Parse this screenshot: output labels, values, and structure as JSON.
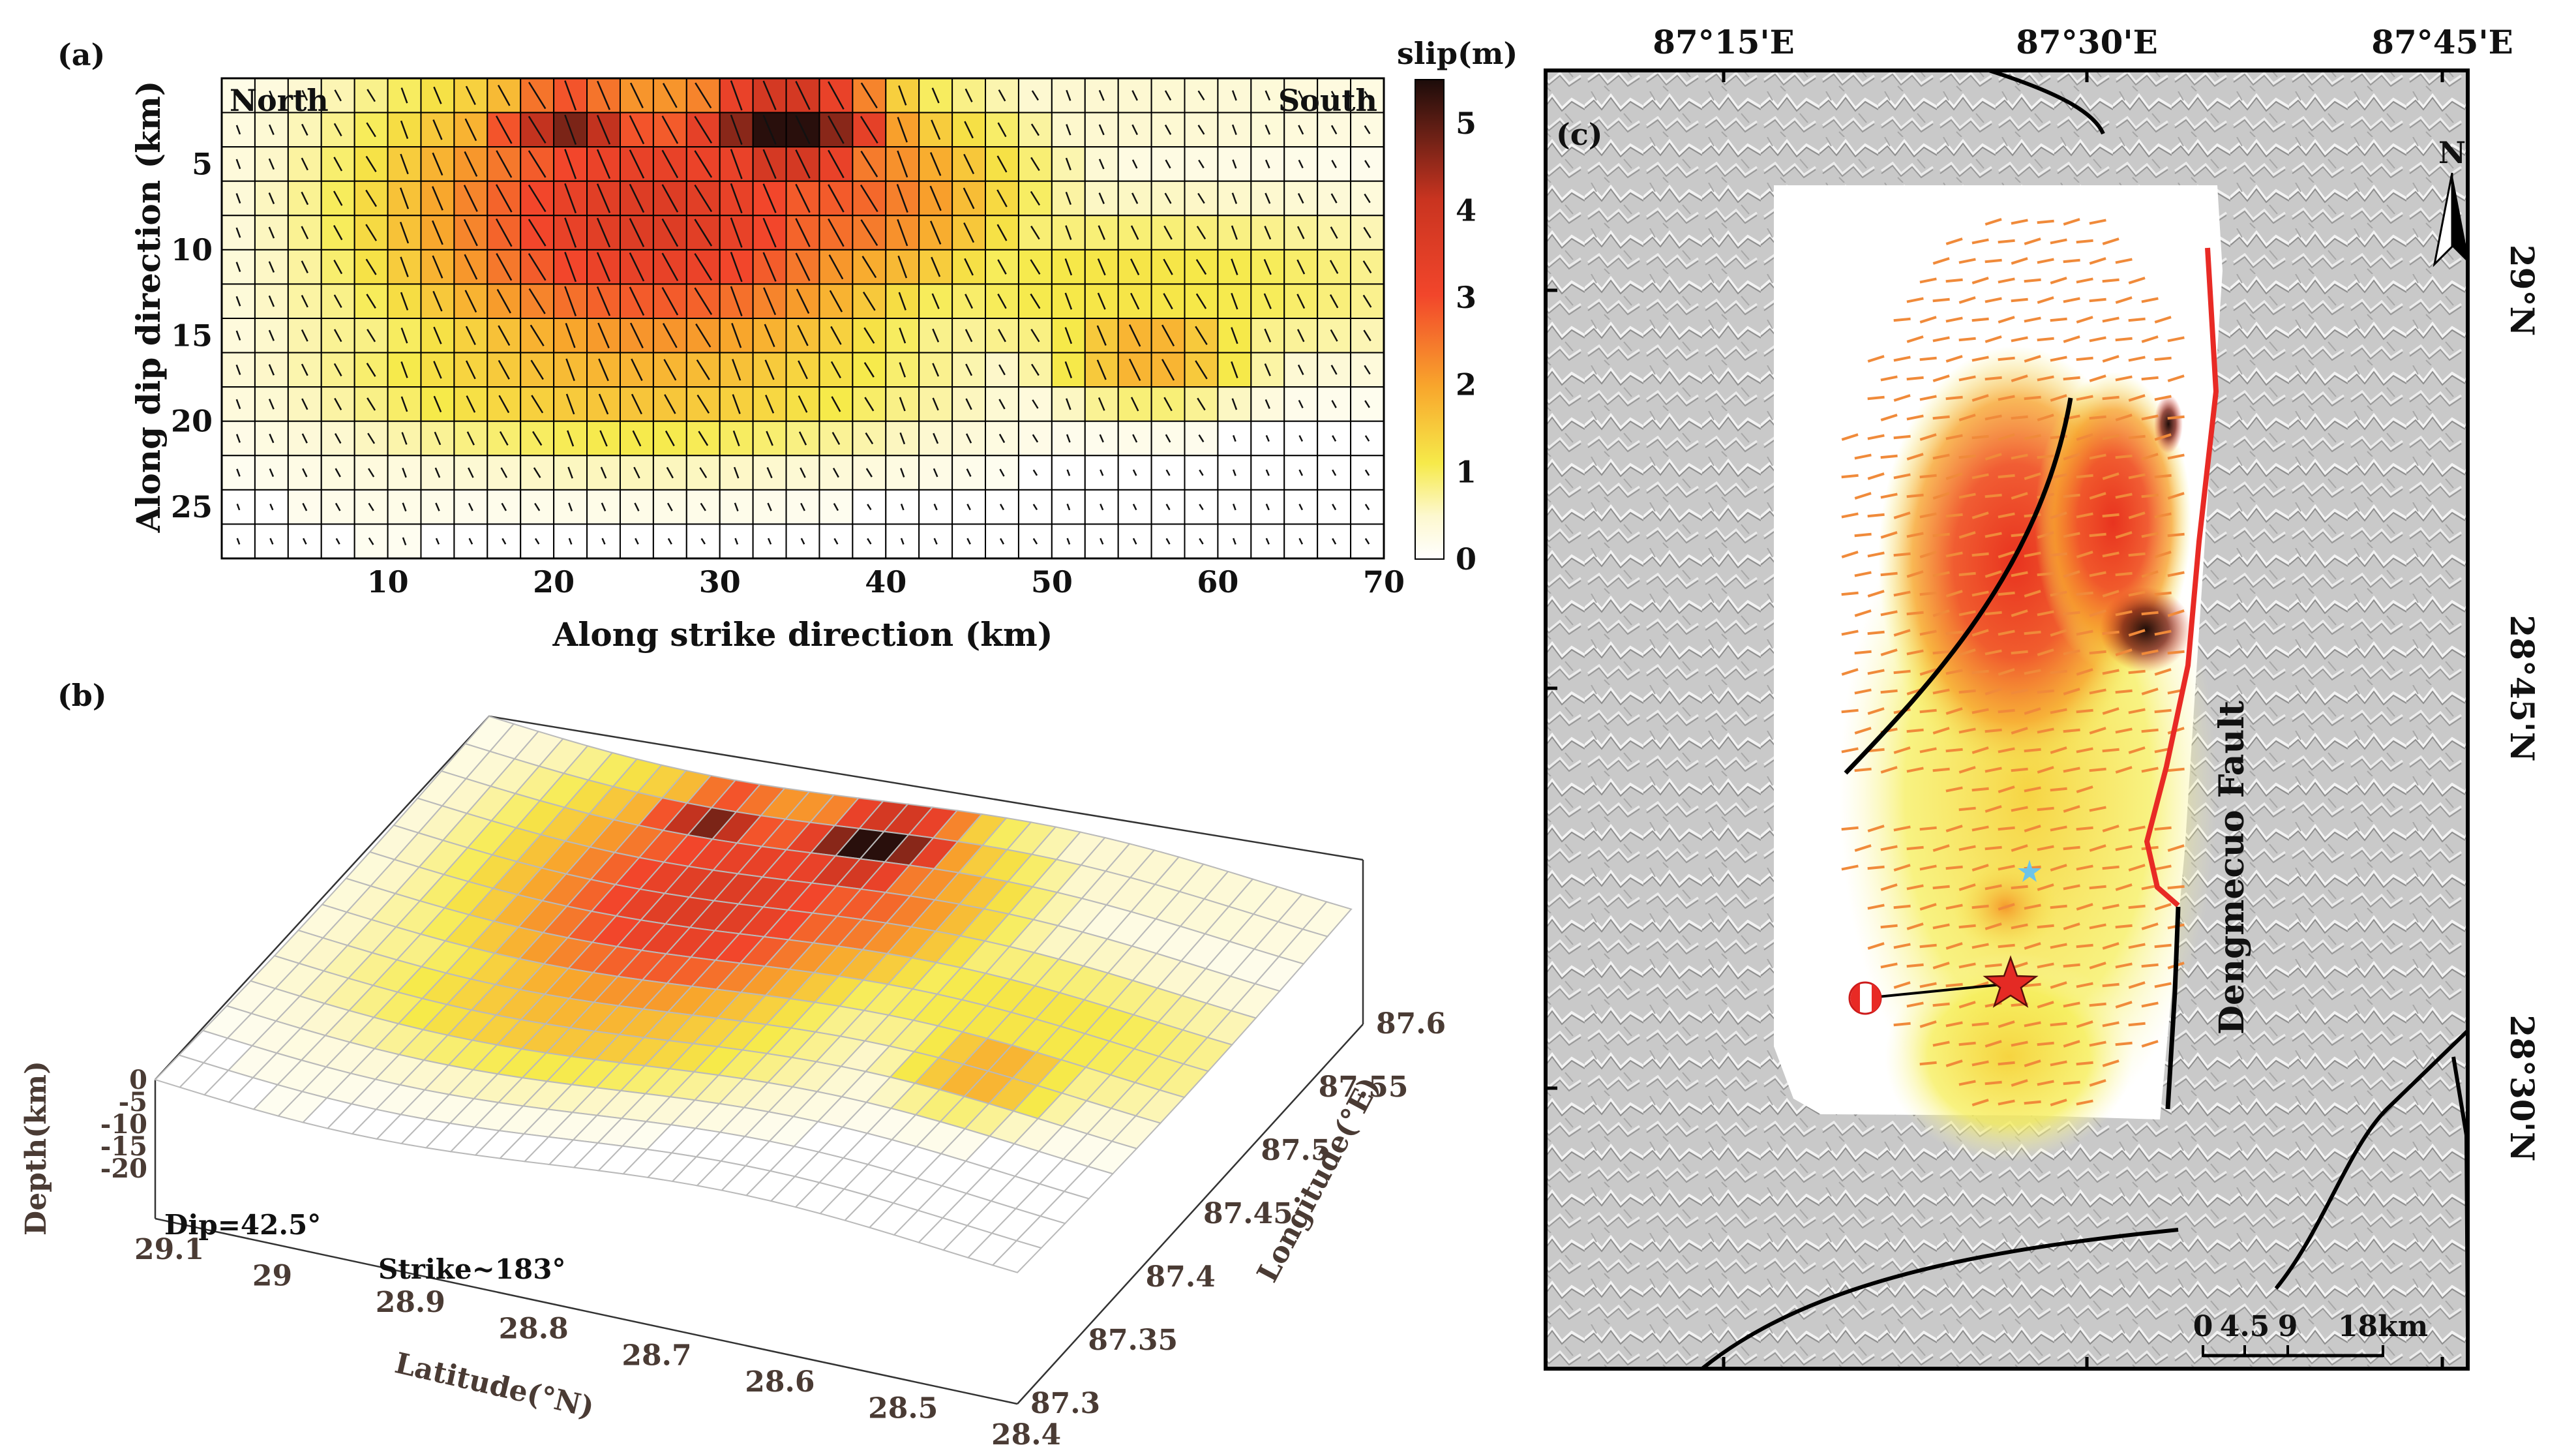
{
  "figure": {
    "panel_a_label": "(a)",
    "panel_b_label": "(b)",
    "panel_c_label": "(c)"
  },
  "chart_data": [
    {
      "panel": "a",
      "type": "heatmap",
      "title": "",
      "xlabel": "Along strike direction (km)",
      "ylabel": "Along dip direction (km)",
      "xlim": [
        0,
        70
      ],
      "ylim": [
        28,
        0
      ],
      "xticks": [
        "10",
        "20",
        "30",
        "40",
        "50",
        "60",
        "70"
      ],
      "yticks": [
        "5",
        "10",
        "15",
        "20",
        "25"
      ],
      "corner_left": "North",
      "corner_right": "South",
      "grid_cols": 35,
      "grid_rows": 14,
      "colorbar": {
        "label": "slip(m)",
        "min": 0,
        "max": 5.5,
        "ticks": [
          "0",
          "1",
          "2",
          "3",
          "4",
          "5"
        ]
      },
      "slip_patches": [
        {
          "strike_km": 34,
          "dip_km": 3,
          "peak_slip_m": 5.5,
          "strike_radius_km": 5,
          "dip_radius_km": 2.4
        },
        {
          "strike_km": 21,
          "dip_km": 3,
          "peak_slip_m": 4.7,
          "strike_radius_km": 4,
          "dip_radius_km": 2.0
        },
        {
          "strike_km": 26,
          "dip_km": 8,
          "peak_slip_m": 3.6,
          "strike_radius_km": 12,
          "dip_radius_km": 7.0
        },
        {
          "strike_km": 36,
          "dip_km": 7,
          "peak_slip_m": 2.8,
          "strike_radius_km": 9,
          "dip_radius_km": 5.0
        },
        {
          "strike_km": 25,
          "dip_km": 17,
          "peak_slip_m": 1.8,
          "strike_radius_km": 14,
          "dip_radius_km": 4.0
        },
        {
          "strike_km": 56,
          "dip_km": 16,
          "peak_slip_m": 2.0,
          "strike_radius_km": 5,
          "dip_radius_km": 2.4
        },
        {
          "strike_km": 55,
          "dip_km": 12,
          "peak_slip_m": 1.2,
          "strike_radius_km": 16,
          "dip_radius_km": 4.0
        },
        {
          "strike_km": 10,
          "dip_km": 12,
          "peak_slip_m": 0.9,
          "strike_radius_km": 7,
          "dip_radius_km": 8.0
        },
        {
          "strike_km": 52,
          "dip_km": 2,
          "peak_slip_m": 0.5,
          "strike_radius_km": 18,
          "dip_radius_km": 3.0
        }
      ]
    },
    {
      "panel": "b",
      "type": "surface3d",
      "xlabel": "Latitude(°N)",
      "ylabel": "Longitude(°E)",
      "zlabel": "Depth(km)",
      "latitude_ticks": [
        "29.1",
        "29",
        "28.9",
        "28.8",
        "28.7",
        "28.6",
        "28.5",
        "28.4"
      ],
      "longitude_ticks": [
        "87.6",
        "87.55",
        "87.5",
        "87.45",
        "87.4",
        "87.35",
        "87.3"
      ],
      "depth_ticks": [
        "0",
        "-5",
        "-10",
        "-15",
        "-20"
      ],
      "dip_label": "Dip=42.5°",
      "strike_label": "Strike~183°"
    },
    {
      "panel": "c",
      "type": "map",
      "lon_ticks": [
        "87°15'E",
        "87°30'E",
        "87°45'E"
      ],
      "lat_ticks": [
        "29°N",
        "28°45'N",
        "28°30'N"
      ],
      "fault_label": "Dengmecuo Fault",
      "north_label": "N",
      "scale_ticks": [
        "0",
        "4.5",
        "9",
        "18km"
      ]
    }
  ]
}
